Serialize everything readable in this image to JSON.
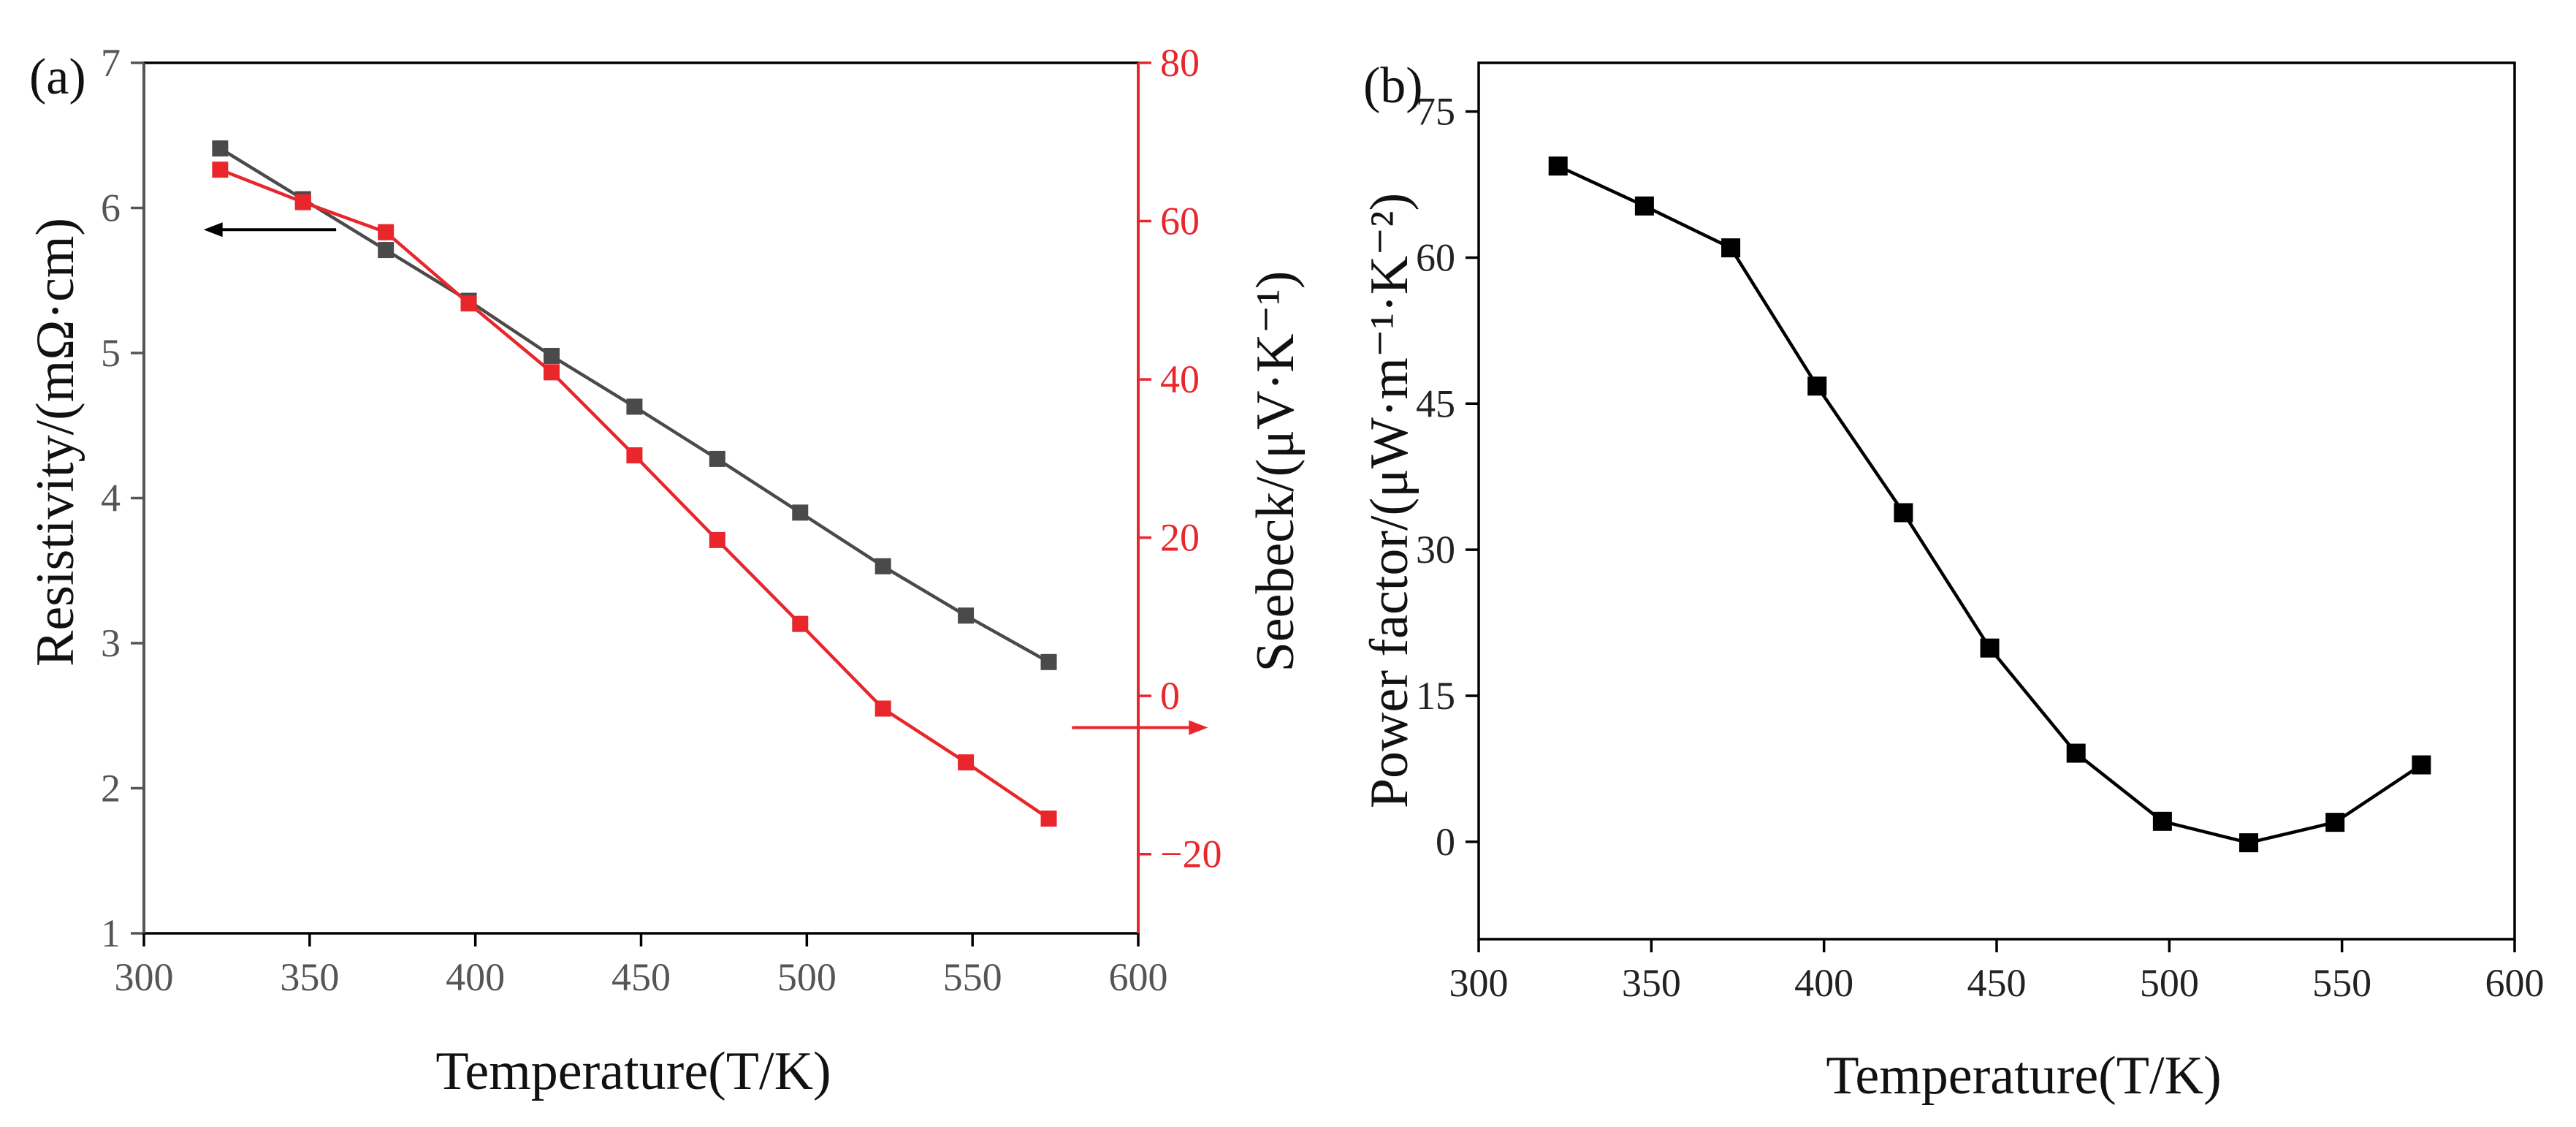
{
  "colors": {
    "resistivity": "#4a4a4a",
    "seebeck": "#e8262c",
    "power_factor": "#000000",
    "left_axis_a": "#555555",
    "right_axis_a": "#e8262c"
  },
  "chart_data": [
    {
      "panel_label": "(a)",
      "type": "line",
      "xlabel": "Temperature(T/K)",
      "xlim": [
        300,
        600
      ],
      "x_ticks": [
        "300",
        "350",
        "400",
        "450",
        "500",
        "550",
        "600"
      ],
      "ylabel_left": "Resistivity/(mΩ·cm)",
      "ylim_left": [
        1,
        7
      ],
      "y_ticks_left": [
        "1",
        "2",
        "3",
        "4",
        "5",
        "6",
        "7"
      ],
      "ylabel_right": "Seebeck/(μV·K⁻¹)",
      "ylim_right": [
        -30,
        80
      ],
      "y_ticks_right": [
        "−20",
        "0",
        "20",
        "40",
        "60",
        "80"
      ],
      "grid": false,
      "series": [
        {
          "axis": "left",
          "x": [
            323,
            348,
            373,
            398,
            423,
            448,
            473,
            498,
            523,
            548,
            573
          ],
          "values": [
            6.41,
            6.06,
            5.71,
            5.36,
            4.98,
            4.63,
            4.27,
            3.9,
            3.53,
            3.19,
            2.87
          ]
        },
        {
          "axis": "right",
          "x": [
            323,
            348,
            373,
            398,
            423,
            448,
            473,
            498,
            523,
            548,
            573
          ],
          "values": [
            66.5,
            62.4,
            58.6,
            49.6,
            40.9,
            30.4,
            19.7,
            9.1,
            -1.6,
            -8.4,
            -15.5
          ]
        }
      ],
      "annotations": [
        {
          "type": "arrow",
          "points_to": "left axis",
          "color": "#000000",
          "from_x": 358,
          "to_x": 318,
          "y_left": 5.85
        },
        {
          "type": "arrow",
          "points_to": "right axis",
          "color": "#e8262c",
          "from_x": 580,
          "to_x": 621,
          "y_right": -4
        }
      ]
    },
    {
      "panel_label": "(b)",
      "type": "line",
      "xlabel": "Temperature(T/K)",
      "xlim": [
        300,
        600
      ],
      "x_ticks": [
        "300",
        "350",
        "400",
        "450",
        "500",
        "550",
        "600"
      ],
      "ylabel": "Power factor/(μW·m⁻¹·K⁻²)",
      "ylim": [
        -10,
        80
      ],
      "y_ticks": [
        "0",
        "15",
        "30",
        "45",
        "60",
        "75"
      ],
      "grid": false,
      "series": [
        {
          "x": [
            323,
            348,
            373,
            398,
            423,
            448,
            473,
            498,
            523,
            548,
            573
          ],
          "values": [
            69.4,
            65.3,
            61.0,
            46.8,
            33.8,
            19.9,
            9.1,
            2.1,
            -0.1,
            2.0,
            7.9
          ]
        }
      ]
    }
  ]
}
